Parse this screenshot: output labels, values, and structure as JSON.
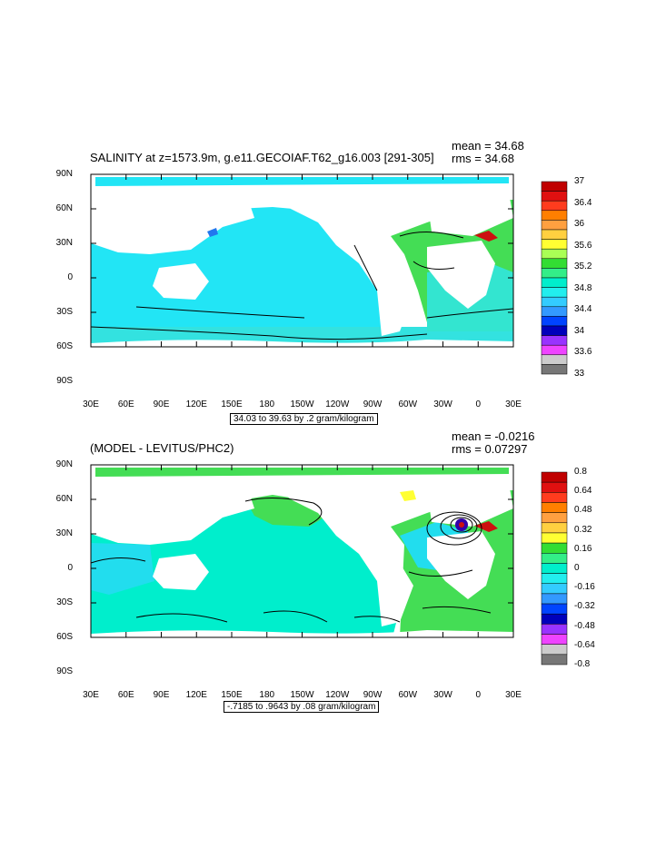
{
  "panels": [
    {
      "title": "SALINITY at z=1573.9m, g.e11.GECOIAF.T62_g16.003 [291-305]",
      "mean": "mean = 34.68",
      "rms": "rms = 34.68",
      "info": "34.03 to 39.63 by .2 gram/kilogram",
      "colorbar": {
        "labels": [
          "37",
          "36.4",
          "36",
          "35.6",
          "35.2",
          "34.8",
          "34.4",
          "34",
          "33.6",
          "33"
        ],
        "colors": [
          "#c00000",
          "#e01010",
          "#ff3c1e",
          "#ff7f00",
          "#ffa040",
          "#ffd040",
          "#ffff33",
          "#aaff55",
          "#33dd33",
          "#33ee88",
          "#00eecc",
          "#22eeee",
          "#33ccff",
          "#3399ff",
          "#0044ff",
          "#0000bb",
          "#9933ff",
          "#ee44ff",
          "#cccccc",
          "#777777"
        ]
      }
    },
    {
      "title": "(MODEL - LEVITUS/PHC2)",
      "mean": "mean = -0.0216",
      "rms": "rms = 0.07297",
      "info": "-.7185 to .9643 by .08 gram/kilogram",
      "colorbar": {
        "labels": [
          "0.8",
          "0.64",
          "0.48",
          "0.32",
          "0.16",
          "0",
          "-0.16",
          "-0.32",
          "-0.48",
          "-0.64",
          "-0.8"
        ],
        "colors": [
          "#c00000",
          "#e01010",
          "#ff3c1e",
          "#ff7f00",
          "#ffa040",
          "#ffd040",
          "#ffff33",
          "#33dd33",
          "#33ee88",
          "#00eecc",
          "#22eeee",
          "#33ccff",
          "#3399ff",
          "#0044ff",
          "#0000bb",
          "#9933ff",
          "#ee44ff",
          "#cccccc",
          "#777777"
        ]
      }
    }
  ],
  "axes": {
    "y_ticks": [
      "90N",
      "60N",
      "30N",
      "0",
      "30S",
      "60S",
      "90S"
    ],
    "x_ticks": [
      "30E",
      "60E",
      "90E",
      "120E",
      "150E",
      "180",
      "150W",
      "120W",
      "90W",
      "60W",
      "30W",
      "0",
      "30E"
    ]
  },
  "colors": {
    "ocean_top": "#22e5f5",
    "ocean_top_south": "#33e2e0",
    "atlantic_top": "#44dd55",
    "ocean_bottom": "#00eecc",
    "ocean_bottom_green": "#44dd55",
    "ocean_bottom_cyan": "#22ddee"
  }
}
